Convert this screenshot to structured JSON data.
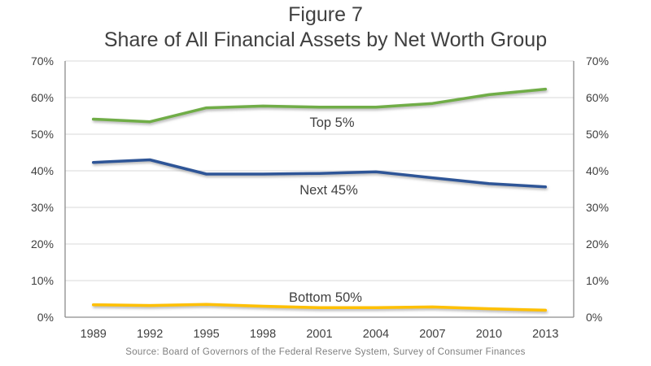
{
  "chart_data": {
    "type": "line",
    "title": "Figure 7",
    "subtitle": "Share of All Financial Assets by Net Worth Group",
    "categories": [
      "1989",
      "1992",
      "1995",
      "1998",
      "2001",
      "2004",
      "2007",
      "2010",
      "2013"
    ],
    "series": [
      {
        "name": "Top 5%",
        "color": "#70AD47",
        "values": [
          54.1,
          53.4,
          57.2,
          57.7,
          57.4,
          57.4,
          58.4,
          60.8,
          62.3
        ]
      },
      {
        "name": "Next 45%",
        "color": "#2E5597",
        "values": [
          42.3,
          43.0,
          39.1,
          39.1,
          39.3,
          39.7,
          38.1,
          36.5,
          35.6
        ]
      },
      {
        "name": "Bottom 50%",
        "color": "#FFC000",
        "values": [
          3.4,
          3.2,
          3.5,
          3.0,
          2.6,
          2.6,
          2.8,
          2.3,
          1.9
        ]
      }
    ],
    "ylim": [
      0,
      70
    ],
    "y_ticks": [
      "0%",
      "10%",
      "20%",
      "30%",
      "40%",
      "50%",
      "60%",
      "70%"
    ],
    "y_axis_sides": "both",
    "grid": "horizontal",
    "legend": "inline-series-labels",
    "xlabel": "",
    "ylabel": ""
  },
  "source_note": "Source: Board of Governors of the Federal Reserve System, Survey of Consumer Finances",
  "palette": {
    "title_text": "#404040",
    "axis_text": "#404040",
    "grid_line": "#D9D9D9",
    "axis_line": "#8C8C8C",
    "source_text": "#7F7F7F",
    "background": "#FFFFFF"
  }
}
